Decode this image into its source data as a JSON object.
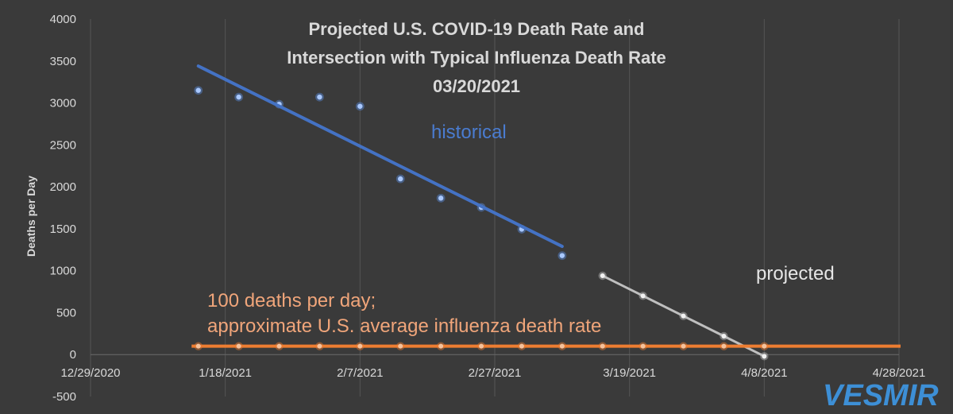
{
  "chart_data": {
    "type": "scatter",
    "title": [
      "Projected U.S. COVID-19 Death Rate and",
      "Intersection with Typical Influenza Death Rate",
      "03/20/2021"
    ],
    "xlabel": "",
    "ylabel": "Deaths per Day",
    "ylim": [
      -500,
      4000
    ],
    "yticks": [
      -500,
      0,
      500,
      1000,
      1500,
      2000,
      2500,
      3000,
      3500,
      4000
    ],
    "xlim_days": [
      0,
      120
    ],
    "xticks": [
      {
        "day": 0,
        "label": "12/29/2020"
      },
      {
        "day": 20,
        "label": "1/18/2021"
      },
      {
        "day": 40,
        "label": "2/7/2021"
      },
      {
        "day": 60,
        "label": "2/27/2021"
      },
      {
        "day": 80,
        "label": "3/19/2021"
      },
      {
        "day": 100,
        "label": "4/8/2021"
      },
      {
        "day": 120,
        "label": "4/28/2021"
      }
    ],
    "grid": "vertical",
    "series": [
      {
        "name": "historical",
        "color": "#5b8ee0",
        "x": [
          16,
          22,
          28,
          34,
          40,
          46,
          52,
          58,
          64,
          70
        ],
        "y": [
          3150,
          3070,
          2985,
          3070,
          2960,
          2095,
          1865,
          1755,
          1495,
          1180
        ]
      },
      {
        "name": "historical trend",
        "color": "#4472c4",
        "type": "line",
        "x": [
          16,
          70
        ],
        "y": [
          3440,
          1290
        ]
      },
      {
        "name": "projected",
        "color": "#bfbfbf",
        "type": "line-markers",
        "x": [
          76,
          82,
          88,
          94,
          100
        ],
        "y": [
          940,
          700,
          460,
          220,
          -20
        ]
      },
      {
        "name": "influenza",
        "color": "#ed7d31",
        "type": "line-markers",
        "x": [
          16,
          22,
          28,
          34,
          40,
          46,
          52,
          58,
          64,
          70,
          76,
          82,
          88,
          94,
          100
        ],
        "y": [
          100,
          100,
          100,
          100,
          100,
          100,
          100,
          100,
          100,
          100,
          100,
          100,
          100,
          100,
          100
        ]
      }
    ],
    "annotations": {
      "historical": "historical",
      "projected": "projected",
      "flu_line1": "100 deaths per day;",
      "flu_line2": "approximate U.S. average influenza death rate"
    }
  },
  "logo": "VESMIR"
}
